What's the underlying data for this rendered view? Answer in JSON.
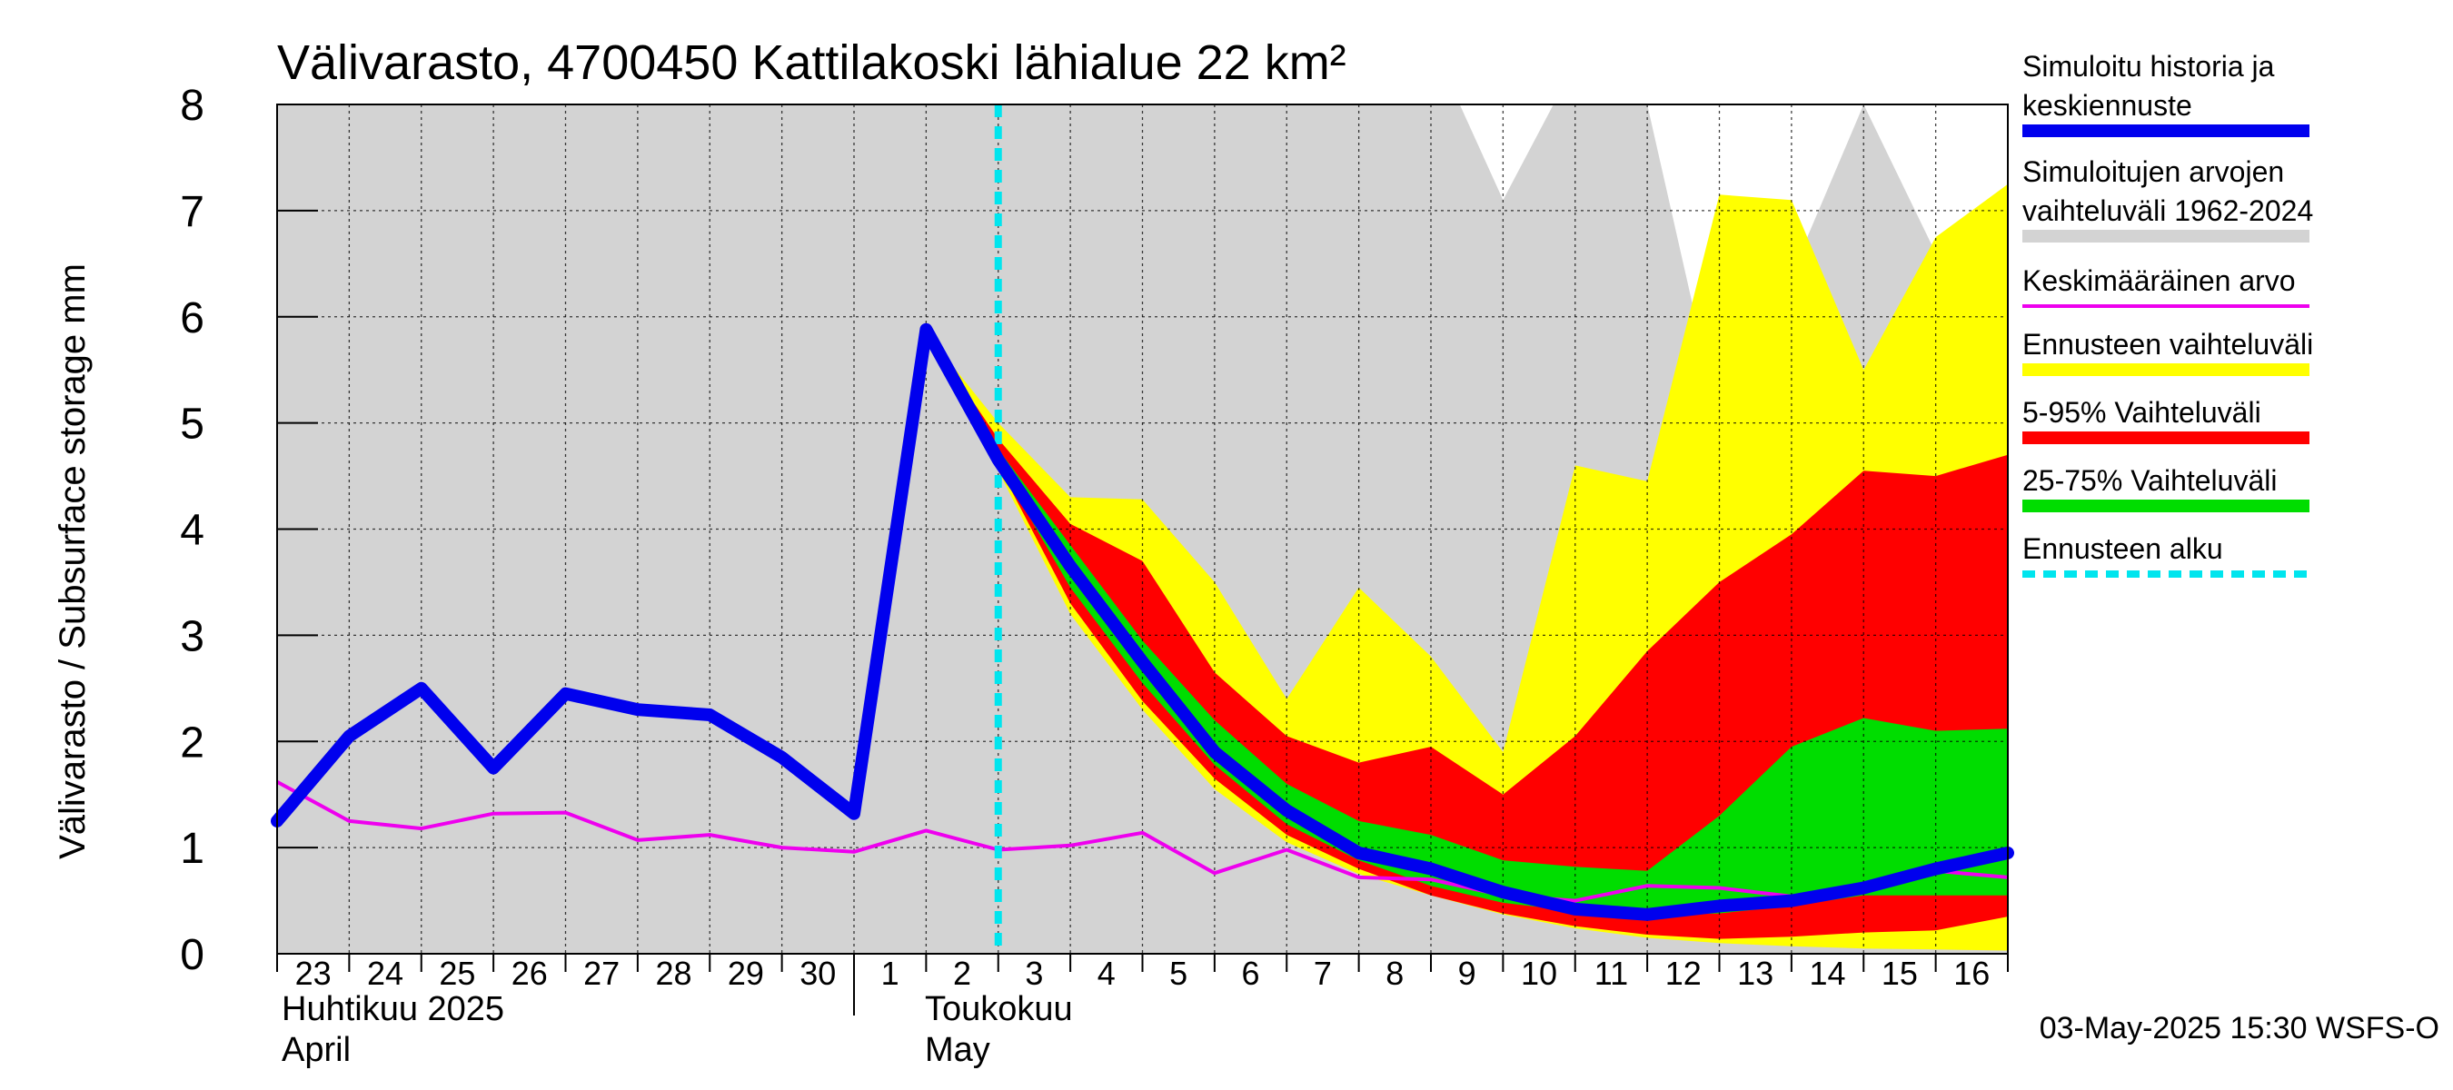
{
  "chart_data": {
    "type": "area",
    "title": "Välivarasto, 4700450 Kattilakoski lähialue 22 km²",
    "ylabel": "Välivarasto / Subsurface storage  mm",
    "ylim": [
      0,
      8
    ],
    "yticks": [
      0,
      1,
      2,
      3,
      4,
      5,
      6,
      7,
      8
    ],
    "xlim": [
      0,
      24
    ],
    "grid": true,
    "x_tick_labels": [
      {
        "x": 0,
        "label": "23"
      },
      {
        "x": 1,
        "label": "24"
      },
      {
        "x": 2,
        "label": "25"
      },
      {
        "x": 3,
        "label": "26"
      },
      {
        "x": 4,
        "label": "27"
      },
      {
        "x": 5,
        "label": "28"
      },
      {
        "x": 6,
        "label": "29"
      },
      {
        "x": 7,
        "label": "30"
      },
      {
        "x": 8,
        "label": "1"
      },
      {
        "x": 9,
        "label": "2"
      },
      {
        "x": 10,
        "label": "3"
      },
      {
        "x": 11,
        "label": "4"
      },
      {
        "x": 12,
        "label": "5"
      },
      {
        "x": 13,
        "label": "6"
      },
      {
        "x": 14,
        "label": "7"
      },
      {
        "x": 15,
        "label": "8"
      },
      {
        "x": 16,
        "label": "9"
      },
      {
        "x": 17,
        "label": "10"
      },
      {
        "x": 18,
        "label": "11"
      },
      {
        "x": 19,
        "label": "12"
      },
      {
        "x": 20,
        "label": "13"
      },
      {
        "x": 21,
        "label": "14"
      },
      {
        "x": 22,
        "label": "15"
      },
      {
        "x": 23,
        "label": "16"
      }
    ],
    "month_labels": {
      "april_fi": "Huhtikuu  2025",
      "april_en": "April",
      "may_fi": "Toukokuu",
      "may_en": "May"
    },
    "month_boundary_x": 8,
    "forecast_start_x": 10,
    "footer": "03-May-2025 15:30 WSFS-O",
    "legend_position": "right",
    "legend": [
      {
        "label1": "Simuloitu historia ja",
        "label2": "keskiennuste",
        "color": "#0000ee",
        "style": "line"
      },
      {
        "label1": "Simuloitujen arvojen",
        "label2": "vaihteluväli 1962-2024",
        "color": "#d3d3d3",
        "style": "band"
      },
      {
        "label1": "Keskimääräinen arvo",
        "label2": "",
        "color": "#ee00ee",
        "style": "line"
      },
      {
        "label1": "Ennusteen vaihteluväli",
        "label2": "",
        "color": "#ffff00",
        "style": "band"
      },
      {
        "label1": "5-95% Vaihteluväli",
        "label2": "",
        "color": "#ff0000",
        "style": "band"
      },
      {
        "label1": "25-75% Vaihteluväli",
        "label2": "",
        "color": "#00dd00",
        "style": "band"
      },
      {
        "label1": "Ennusteen alku",
        "label2": "",
        "color": "#00e5ee",
        "style": "dashed"
      }
    ],
    "historical_range": {
      "color": "#d3d3d3",
      "x": [
        0,
        1,
        2,
        3,
        4,
        5,
        6,
        7,
        8,
        9,
        10,
        11,
        12,
        13,
        14,
        15,
        15.7,
        16.4,
        17,
        17.7,
        18,
        19,
        20,
        21,
        22,
        23,
        24
      ],
      "upper": [
        8,
        8,
        8,
        8,
        8,
        8,
        8,
        8,
        8,
        8,
        8,
        8,
        8,
        8,
        8,
        8,
        8,
        8,
        7.1,
        8,
        8,
        8,
        5.0,
        6.4,
        8,
        6.6,
        5.5
      ],
      "lower": [
        0,
        0,
        0,
        0,
        0,
        0,
        0,
        0,
        0,
        0,
        0,
        0,
        0,
        0,
        0,
        0,
        0,
        0,
        0,
        0,
        0,
        0,
        0,
        0,
        0,
        0,
        0
      ]
    },
    "forecast_range": {
      "color": "#ffff00",
      "x": [
        9,
        10,
        11,
        12,
        13,
        14,
        15,
        16,
        17,
        18,
        19,
        20,
        21,
        22,
        23,
        24
      ],
      "upper": [
        5.85,
        5.0,
        4.3,
        4.28,
        3.5,
        2.4,
        3.45,
        2.8,
        1.9,
        4.6,
        4.45,
        7.15,
        7.1,
        5.5,
        6.75,
        7.25
      ],
      "lower": [
        5.85,
        4.55,
        3.2,
        2.3,
        1.55,
        1.05,
        0.75,
        0.55,
        0.37,
        0.24,
        0.15,
        0.1,
        0.07,
        0.05,
        0.04,
        0.03
      ]
    },
    "p05_95": {
      "color": "#ff0000",
      "x": [
        9,
        10,
        11,
        12,
        13,
        14,
        15,
        16,
        17,
        18,
        19,
        20,
        21,
        22,
        23,
        24
      ],
      "upper": [
        5.85,
        4.85,
        4.05,
        3.7,
        2.65,
        2.05,
        1.8,
        1.95,
        1.5,
        2.05,
        2.85,
        3.5,
        3.95,
        4.55,
        4.5,
        4.7
      ],
      "lower": [
        5.85,
        4.6,
        3.3,
        2.38,
        1.65,
        1.12,
        0.8,
        0.55,
        0.38,
        0.26,
        0.18,
        0.14,
        0.16,
        0.2,
        0.22,
        0.35
      ]
    },
    "p25_75": {
      "color": "#00dd00",
      "x": [
        9,
        10,
        11,
        12,
        13,
        14,
        15,
        16,
        17,
        18,
        19,
        20,
        21,
        22,
        23,
        24
      ],
      "upper": [
        5.85,
        4.75,
        3.85,
        2.95,
        2.2,
        1.6,
        1.25,
        1.12,
        0.88,
        0.82,
        0.78,
        1.3,
        1.95,
        2.22,
        2.1,
        2.12
      ],
      "lower": [
        5.85,
        4.62,
        3.45,
        2.55,
        1.78,
        1.22,
        0.88,
        0.64,
        0.48,
        0.4,
        0.36,
        0.38,
        0.45,
        0.55,
        0.55,
        0.55
      ]
    },
    "series": [
      {
        "name": "Simuloitu historia ja keskiennuste",
        "color": "#0000ee",
        "x": [
          0,
          1,
          2,
          3,
          4,
          5,
          6,
          7,
          8,
          9,
          10,
          11,
          12,
          13,
          14,
          15,
          16,
          17,
          18,
          19,
          20,
          21,
          22,
          23,
          24
        ],
        "values": [
          1.25,
          2.05,
          2.5,
          1.75,
          2.45,
          2.3,
          2.25,
          1.85,
          1.32,
          5.88,
          4.65,
          3.65,
          2.75,
          1.9,
          1.35,
          0.95,
          0.8,
          0.58,
          0.42,
          0.37,
          0.45,
          0.5,
          0.62,
          0.8,
          0.95
        ]
      },
      {
        "name": "Keskimääräinen arvo",
        "color": "#ee00ee",
        "x": [
          0,
          1,
          2,
          3,
          4,
          5,
          6,
          7,
          8,
          9,
          10,
          11,
          12,
          13,
          14,
          15,
          16,
          17,
          18,
          19,
          20,
          21,
          22,
          23,
          24
        ],
        "values": [
          1.62,
          1.25,
          1.18,
          1.32,
          1.33,
          1.07,
          1.12,
          1.0,
          0.96,
          1.16,
          0.98,
          1.02,
          1.14,
          0.76,
          0.98,
          0.72,
          0.7,
          0.55,
          0.5,
          0.64,
          0.62,
          0.54,
          0.63,
          0.78,
          0.72
        ]
      }
    ]
  }
}
